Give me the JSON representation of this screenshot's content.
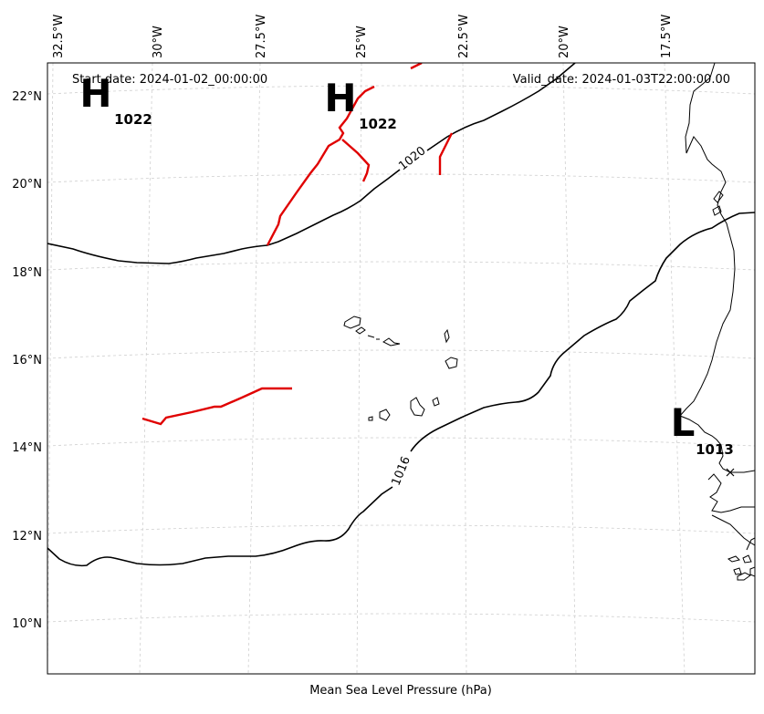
{
  "header": {
    "start_date": "Start date: 2024-01-02_00:00:00",
    "valid_date": "Valid_date: 2024-01-03T22:00:00.00"
  },
  "footer": {
    "caption": "Mean Sea Level Pressure (hPa)"
  },
  "axes": {
    "lon_ticks": [
      "32.5°W",
      "30°W",
      "27.5°W",
      "25°W",
      "22.5°W",
      "20°W",
      "17.5°W"
    ],
    "lat_ticks": [
      "22°N",
      "20°N",
      "18°N",
      "16°N",
      "14°N",
      "12°N",
      "10°N"
    ]
  },
  "isobar_labels": {
    "contour_1020": "1020",
    "contour_1016": "1016"
  },
  "pressure_centers": [
    {
      "type": "H",
      "value": "1022"
    },
    {
      "type": "H",
      "value": "1022"
    },
    {
      "type": "L",
      "value": "1013"
    }
  ],
  "colors": {
    "front": "#e00000",
    "isobar": "#000000",
    "grid": "#cfcfcf"
  }
}
